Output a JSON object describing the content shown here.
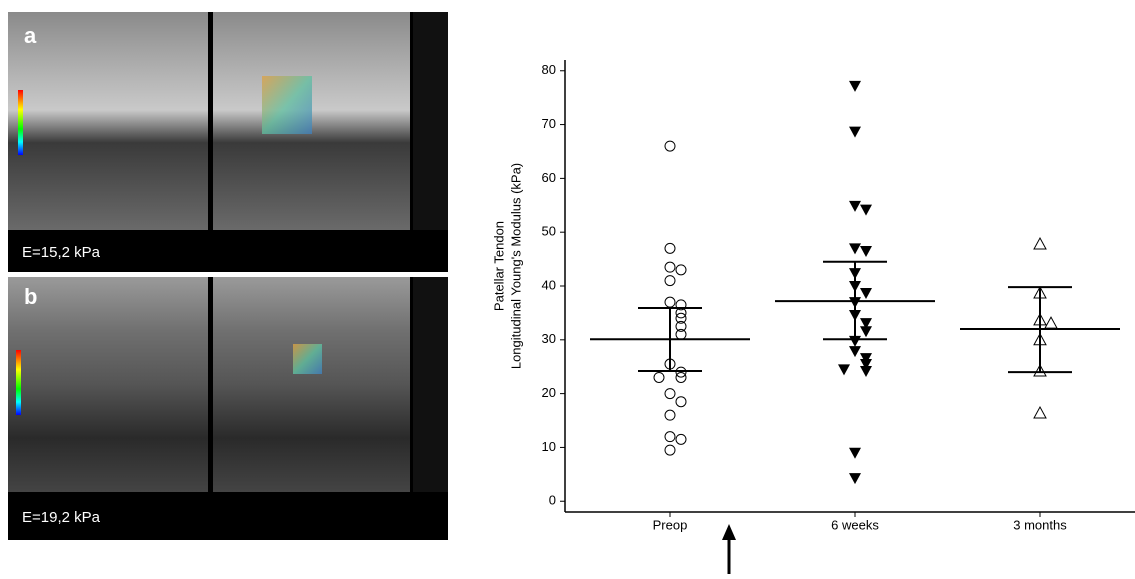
{
  "panels": [
    {
      "letter": "a",
      "caption": "E=15,2 kPa"
    },
    {
      "letter": "b",
      "caption": "E=19,2 kPa"
    }
  ],
  "chart_data": {
    "type": "strip",
    "y_label_lines": [
      "Patellar Tendon",
      "Longitudinal Young's Modulus (kPa)"
    ],
    "categories": [
      "Preop",
      "6 weeks",
      "3 months"
    ],
    "ylim": [
      -2,
      82
    ],
    "yticks": [
      0,
      10,
      20,
      30,
      40,
      50,
      60,
      70,
      80
    ],
    "color": "#000000",
    "groups": [
      {
        "marker": "open-circle",
        "values": [
          66,
          47,
          43.5,
          43,
          41,
          37,
          36.5,
          35,
          34,
          32.5,
          31,
          25.5,
          24,
          23,
          23,
          20,
          18.5,
          16,
          12,
          11.5,
          9.5
        ],
        "mean": 30.1,
        "err_high": 35.9,
        "err_low": 24.2
      },
      {
        "marker": "filled-down-triangle",
        "values": [
          77.2,
          68.7,
          54.9,
          54.2,
          47,
          46.5,
          42.4,
          40,
          38.7,
          37,
          34.6,
          33.1,
          31.6,
          29.8,
          27.9,
          26.6,
          25.5,
          24.2,
          24.5,
          9,
          4.3
        ],
        "mean": 37.2,
        "err_high": 44.5,
        "err_low": 30.1
      },
      {
        "marker": "open-up-triangle",
        "values": [
          47.8,
          38.7,
          33.7,
          33.1,
          30,
          24.2,
          16.4
        ],
        "mean": 32,
        "err_high": 39.8,
        "err_low": 24
      }
    ]
  }
}
